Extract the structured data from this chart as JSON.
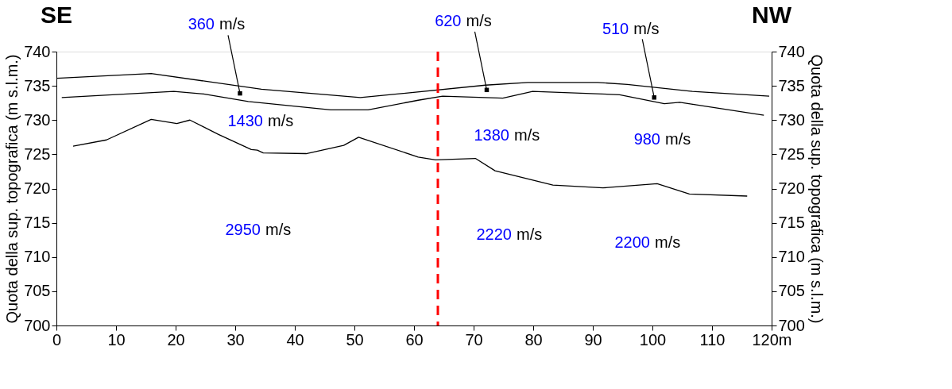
{
  "chart_data": {
    "type": "line",
    "xlim": [
      0,
      120
    ],
    "xticks": [
      0,
      10,
      20,
      30,
      40,
      50,
      60,
      70,
      80,
      90,
      100,
      110,
      {
        "value": 120,
        "label": "120m"
      }
    ],
    "ylim": [
      700,
      740
    ],
    "yticks": [
      700,
      705,
      710,
      715,
      720,
      725,
      730,
      735,
      740
    ],
    "y2lim": [
      700,
      740
    ],
    "y2ticks": [
      700,
      705,
      710,
      715,
      720,
      725,
      730,
      735,
      740
    ],
    "ylabel": "Quota della sup. topografica (m s.l.m.)",
    "y2label": "Quota della sup. topografica (m s.l.m.)",
    "grid": false,
    "legend": false,
    "marker": "none",
    "line_style": "solid",
    "series": [
      {
        "color": "#000000",
        "x": [
          0,
          15.9,
          34.4,
          51,
          58.2,
          72,
          79.1,
          90.8,
          95.8,
          106.7,
          119.6
        ],
        "values": [
          736.1,
          736.8,
          734.5,
          733.3,
          733.9,
          735.1,
          735.5,
          735.5,
          735.2,
          734.2,
          733.5
        ]
      },
      {
        "color": "#000000",
        "x": [
          0.9,
          19.7,
          24.7,
          32.2,
          46,
          52.3,
          60.7,
          64.8,
          74.9,
          79.9,
          94.5,
          102,
          104.6,
          118.7
        ],
        "values": [
          733.3,
          734.2,
          733.8,
          732.7,
          731.5,
          731.5,
          732.9,
          733.5,
          733.2,
          734.2,
          733.7,
          732.4,
          732.6,
          730.7
        ]
      },
      {
        "color": "#000000",
        "x": [
          2.8,
          8.4,
          15.9,
          20.2,
          22.4,
          27.2,
          32.7,
          33.7,
          34.7,
          41.9,
          48.2,
          50.7,
          60.7,
          63.6,
          70.3,
          73.6,
          83.3,
          91.7,
          100.8,
          106.2,
          115.9
        ],
        "values": [
          726.2,
          727.1,
          730.1,
          729.5,
          730.0,
          727.9,
          725.7,
          725.6,
          725.2,
          725.1,
          726.3,
          727.5,
          724.6,
          724.2,
          724.4,
          722.6,
          720.5,
          720.1,
          720.7,
          719.2,
          718.9
        ]
      }
    ],
    "ref_lines": [
      {
        "axis": "x",
        "value": 64,
        "color": "#ff0000",
        "line_style": "dashed"
      }
    ],
    "annotations": [
      "SE",
      "NW",
      {
        "text": "360 m/s",
        "x": 30.8,
        "y": 733.9
      },
      {
        "text": "620 m/s",
        "x": 72.2,
        "y": 734.4
      },
      {
        "text": "510 m/s",
        "x": 100.3,
        "y": 733.3
      },
      "1430 m/s",
      "1380 m/s",
      "980 m/s",
      "2950 m/s",
      "2220 m/s",
      "2200 m/s"
    ]
  }
}
